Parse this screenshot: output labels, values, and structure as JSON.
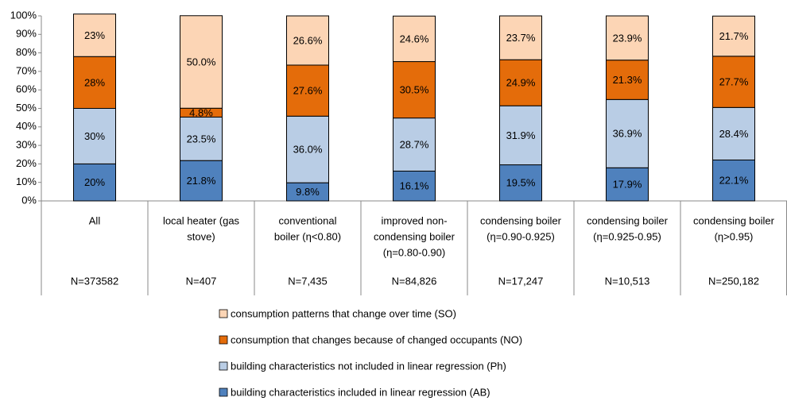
{
  "chart_data": {
    "type": "stacked_bar",
    "categories": [
      [
        "All"
      ],
      [
        "local heater (gas",
        "stove)"
      ],
      [
        "conventional",
        "boiler (η<0.80)"
      ],
      [
        "improved non-",
        "condensing boiler",
        "(η=0.80-0.90)"
      ],
      [
        "condensing boiler",
        "(η=0.90-0.925)"
      ],
      [
        "condensing boiler",
        "(η=0.925-0.95)"
      ],
      [
        "condensing boiler",
        "(η>0.95)"
      ]
    ],
    "sample_sizes": [
      "N=373582",
      "N=407",
      "N=7,435",
      "N=84,826",
      "N=17,247",
      "N=10,513",
      "N=250,182"
    ],
    "series": [
      {
        "name": "building characteristics included in linear regression (AB)",
        "color": "#4f81bd",
        "values": [
          20,
          21.8,
          9.8,
          16.1,
          19.5,
          17.9,
          22.1
        ],
        "value_labels": [
          "20%",
          "21.8%",
          "9.8%",
          "16.1%",
          "19.5%",
          "17.9%",
          "22.1%"
        ]
      },
      {
        "name": "building characteristics not included in linear regression (Ph)",
        "color": "#b9cde5",
        "values": [
          30,
          23.5,
          36.0,
          28.7,
          31.9,
          36.9,
          28.4
        ],
        "value_labels": [
          "30%",
          "23.5%",
          "36.0%",
          "28.7%",
          "31.9%",
          "36.9%",
          "28.4%"
        ]
      },
      {
        "name": "consumption that changes because of changed occupants (NO)",
        "color": "#e46c0a",
        "values": [
          28,
          4.8,
          27.6,
          30.5,
          24.9,
          21.3,
          27.7
        ],
        "value_labels": [
          "28%",
          "4.8%",
          "27.6%",
          "30.5%",
          "24.9%",
          "21.3%",
          "27.7%"
        ]
      },
      {
        "name": "consumption patterns that change over time (SO)",
        "color": "#fcd5b5",
        "values": [
          23,
          50.0,
          26.6,
          24.6,
          23.7,
          23.9,
          21.7
        ],
        "value_labels": [
          "23%",
          "50.0%",
          "26.6%",
          "24.6%",
          "23.7%",
          "23.9%",
          "21.7%"
        ]
      }
    ],
    "ylim": [
      0,
      100
    ],
    "yticks": [
      {
        "value": 0,
        "label": "0%"
      },
      {
        "value": 10,
        "label": "10%"
      },
      {
        "value": 20,
        "label": "20%"
      },
      {
        "value": 30,
        "label": "30%"
      },
      {
        "value": 40,
        "label": "40%"
      },
      {
        "value": 50,
        "label": "50%"
      },
      {
        "value": 60,
        "label": "60%"
      },
      {
        "value": 70,
        "label": "70%"
      },
      {
        "value": 80,
        "label": "80%"
      },
      {
        "value": 90,
        "label": "90%"
      },
      {
        "value": 100,
        "label": "100%"
      }
    ],
    "legend": "bottom"
  }
}
